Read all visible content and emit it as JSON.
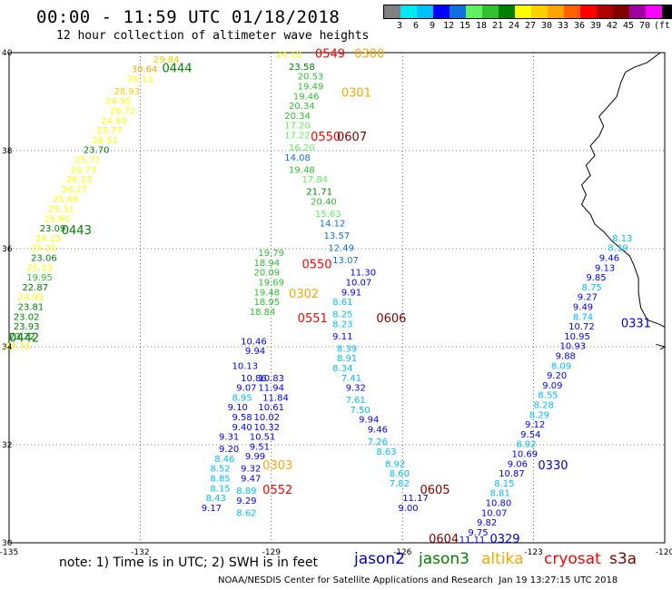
{
  "header": {
    "title": "00:00 - 11:59 UTC 01/18/2018",
    "subtitle": "12 hour collection of altimeter wave heights"
  },
  "legend": {
    "colors": [
      "#808080",
      "#00e8f0",
      "#00c0f8",
      "#0000ff",
      "#1070e0",
      "#60f060",
      "#30c030",
      "#008000",
      "#ffff00",
      "#f8d000",
      "#ffa500",
      "#ff6000",
      "#ff0000",
      "#b00000",
      "#800000",
      "#a000a0",
      "#ff00ff",
      "#000000"
    ],
    "labels": [
      "3",
      "6",
      "9",
      "12",
      "15",
      "18",
      "21",
      "24",
      "27",
      "30",
      "33",
      "36",
      "39",
      "42",
      "45",
      "70",
      "(ft)"
    ]
  },
  "map": {
    "lon_range": [
      -135,
      -120
    ],
    "lat_range": [
      30,
      40
    ],
    "lon_ticks": [
      "-135",
      "-132",
      "-129",
      "-126",
      "-123",
      "-120"
    ],
    "lat_ticks": [
      "40",
      "38",
      "36",
      "34",
      "32",
      "30"
    ],
    "grid": "dotted",
    "coastline_color": "#000000"
  },
  "chart_data": {
    "type": "scatter",
    "title": "00:00 - 11:59 UTC 01/18/2018",
    "x_axis": "longitude",
    "y_axis": "latitude",
    "passes": [
      {
        "satellite": "jason3",
        "time": "0444",
        "label_pos": [
          -131.5,
          39.6
        ],
        "points": [
          [
            -131.7,
            39.8,
            29.84
          ],
          [
            -132.2,
            39.6,
            30.64
          ],
          [
            -132.3,
            39.4,
            26.13
          ],
          [
            -132.6,
            39.15,
            28.93
          ],
          [
            -132.8,
            38.95,
            24.95
          ],
          [
            -132.7,
            38.75,
            26.72
          ],
          [
            -132.9,
            38.55,
            24.93
          ],
          [
            -133.0,
            38.35,
            25.77
          ],
          [
            -133.1,
            38.15,
            26.51
          ],
          [
            -133.3,
            37.95,
            23.7
          ],
          [
            -133.5,
            37.75,
            25.71
          ],
          [
            -133.6,
            37.55,
            26.73
          ],
          [
            -133.7,
            37.35,
            26.23
          ],
          [
            -133.8,
            37.15,
            26.27
          ],
          [
            -134.0,
            36.95,
            25.65
          ],
          [
            -134.1,
            36.75,
            25.31
          ],
          [
            -134.2,
            36.55,
            25.9
          ],
          [
            -134.3,
            36.35,
            23.09
          ],
          [
            -134.4,
            36.15,
            24.15
          ],
          [
            -134.5,
            35.95,
            25.25
          ],
          [
            -134.5,
            35.75,
            23.06
          ],
          [
            -134.6,
            35.55,
            25.33
          ],
          [
            -134.6,
            35.35,
            19.95
          ],
          [
            -134.7,
            35.15,
            22.87
          ],
          [
            -134.8,
            34.95,
            24.95
          ],
          [
            -134.8,
            34.75,
            23.81
          ],
          [
            -134.9,
            34.55,
            23.02
          ],
          [
            -134.9,
            34.35,
            23.93
          ],
          [
            -135.0,
            34.15,
            23.22
          ],
          [
            -135.1,
            33.95,
            24.15
          ]
        ]
      },
      {
        "satellite": "jason3",
        "time": "0443",
        "label_pos": [
          -133.8,
          36.3
        ],
        "points": []
      },
      {
        "satellite": "jason3",
        "time": "0442",
        "label_pos": [
          -135.0,
          34.1
        ],
        "points": []
      },
      {
        "satellite": "altika",
        "time": "0300",
        "label_pos": [
          -127.1,
          39.9
        ],
        "points": [
          [
            -128.9,
            39.9,
            24.1
          ],
          [
            -128.6,
            39.65,
            23.58
          ],
          [
            -128.4,
            39.45,
            20.53
          ],
          [
            -128.4,
            39.25,
            19.49
          ],
          [
            -128.5,
            39.05,
            19.46
          ],
          [
            -128.6,
            38.85,
            20.34
          ],
          [
            -128.7,
            38.65,
            20.34
          ],
          [
            -128.7,
            38.45,
            17.2
          ],
          [
            -128.7,
            38.25,
            17.22
          ],
          [
            -128.6,
            38.0,
            16.2
          ],
          [
            -128.7,
            37.8,
            14.08
          ],
          [
            -128.6,
            37.55,
            19.48
          ],
          [
            -128.3,
            37.35,
            17.84
          ],
          [
            -128.2,
            37.1,
            21.71
          ],
          [
            -128.1,
            36.9,
            20.4
          ],
          [
            -128.0,
            36.65,
            15.63
          ],
          [
            -127.9,
            36.45,
            14.12
          ],
          [
            -127.8,
            36.2,
            13.57
          ],
          [
            -127.7,
            35.95,
            12.49
          ],
          [
            -127.6,
            35.7,
            13.07
          ]
        ]
      },
      {
        "satellite": "altika",
        "time": "0301",
        "label_pos": [
          -127.4,
          39.1
        ],
        "points": []
      },
      {
        "satellite": "altika",
        "time": "0302",
        "label_pos": [
          -128.6,
          35.0
        ],
        "points": []
      },
      {
        "satellite": "altika",
        "time": "0303",
        "label_pos": [
          -129.2,
          31.5
        ],
        "points": []
      },
      {
        "satellite": "cryosat",
        "time": "0549",
        "label_pos": [
          -128.0,
          39.9
        ],
        "points": []
      },
      {
        "satellite": "cryosat",
        "time": "0550",
        "label_pos": [
          -128.1,
          38.2
        ],
        "points": []
      },
      {
        "satellite": "cryosat",
        "time": "0550",
        "label_pos": [
          -128.3,
          35.6
        ],
        "points": []
      },
      {
        "satellite": "cryosat",
        "time": "0551",
        "label_pos": [
          -128.4,
          34.5
        ],
        "points": []
      },
      {
        "satellite": "cryosat",
        "time": "0552",
        "label_pos": [
          -129.2,
          31.0
        ],
        "points": []
      },
      {
        "satellite": "s3a",
        "time": "0607",
        "label_pos": [
          -127.5,
          38.2
        ],
        "points": []
      },
      {
        "satellite": "s3a",
        "time": "0606",
        "label_pos": [
          -126.6,
          34.5
        ],
        "points": []
      },
      {
        "satellite": "s3a",
        "time": "0605",
        "label_pos": [
          -125.6,
          31.0
        ],
        "points": []
      },
      {
        "satellite": "s3a",
        "time": "0604",
        "label_pos": [
          -125.4,
          30.0
        ],
        "points": []
      },
      {
        "satellite": "jason2",
        "time": "0331",
        "label_pos": [
          -121.0,
          34.4
        ],
        "points": [
          [
            -121.2,
            36.15,
            8.13
          ],
          [
            -121.3,
            35.95,
            8.39
          ],
          [
            -121.5,
            35.75,
            9.46
          ],
          [
            -121.6,
            35.55,
            9.13
          ],
          [
            -121.8,
            35.35,
            9.85
          ],
          [
            -121.9,
            35.15,
            8.75
          ],
          [
            -122.0,
            34.95,
            9.27
          ],
          [
            -122.1,
            34.75,
            9.49
          ],
          [
            -122.1,
            34.55,
            8.74
          ],
          [
            -122.2,
            34.35,
            10.72
          ],
          [
            -122.3,
            34.15,
            10.95
          ],
          [
            -122.4,
            33.95,
            10.93
          ],
          [
            -122.5,
            33.75,
            9.88
          ],
          [
            -122.6,
            33.55,
            8.09
          ],
          [
            -122.7,
            33.35,
            9.2
          ],
          [
            -122.8,
            33.15,
            9.09
          ],
          [
            -122.9,
            32.95,
            8.55
          ],
          [
            -123.0,
            32.75,
            8.28
          ],
          [
            -123.1,
            32.55,
            8.29
          ],
          [
            -123.2,
            32.35,
            9.12
          ],
          [
            -123.3,
            32.15,
            9.54
          ],
          [
            -123.4,
            31.95,
            8.92
          ],
          [
            -123.5,
            31.75,
            10.69
          ],
          [
            -123.6,
            31.55,
            9.06
          ],
          [
            -123.8,
            31.35,
            10.87
          ],
          [
            -123.9,
            31.15,
            8.15
          ],
          [
            -124.0,
            30.95,
            8.81
          ],
          [
            -124.1,
            30.75,
            10.8
          ],
          [
            -124.2,
            30.55,
            10.07
          ],
          [
            -124.3,
            30.35,
            9.82
          ],
          [
            -124.5,
            30.15,
            9.75
          ],
          [
            -124.7,
            30.0,
            11.11
          ]
        ]
      },
      {
        "satellite": "jason2",
        "time": "0330",
        "label_pos": [
          -122.9,
          31.5
        ],
        "points": []
      },
      {
        "satellite": "jason2",
        "time": "0329",
        "label_pos": [
          -124.0,
          30.0
        ],
        "points": []
      },
      {
        "satellite": "jason3",
        "time": "05xx",
        "label_pos": null,
        "points": [
          [
            -129.3,
            35.85,
            19.79
          ],
          [
            -129.4,
            35.65,
            18.94
          ],
          [
            -129.4,
            35.45,
            20.09
          ],
          [
            -129.3,
            35.25,
            19.69
          ],
          [
            -129.4,
            35.05,
            19.48
          ],
          [
            -129.4,
            34.85,
            18.95
          ],
          [
            -129.5,
            34.65,
            18.84
          ]
        ]
      },
      {
        "satellite": "jason2",
        "time": "05xx",
        "label_pos": null,
        "points": [
          [
            -127.2,
            35.45,
            11.3
          ],
          [
            -127.3,
            35.25,
            10.07
          ],
          [
            -127.4,
            35.05,
            9.91
          ],
          [
            -127.6,
            34.85,
            8.61
          ],
          [
            -127.6,
            34.6,
            8.25
          ],
          [
            -127.6,
            34.4,
            8.23
          ],
          [
            -127.6,
            34.15,
            9.11
          ],
          [
            -127.5,
            33.9,
            8.39
          ],
          [
            -127.5,
            33.7,
            8.91
          ],
          [
            -127.6,
            33.5,
            8.34
          ],
          [
            -127.4,
            33.3,
            7.41
          ],
          [
            -127.3,
            33.1,
            9.32
          ],
          [
            -127.3,
            32.85,
            7.61
          ],
          [
            -127.2,
            32.65,
            7.5
          ],
          [
            -127.0,
            32.45,
            9.94
          ],
          [
            -126.8,
            32.25,
            9.46
          ],
          [
            -126.8,
            32.0,
            7.26
          ],
          [
            -126.6,
            31.8,
            8.63
          ],
          [
            -126.4,
            31.55,
            8.92
          ],
          [
            -126.3,
            31.35,
            8.6
          ],
          [
            -126.3,
            31.15,
            7.82
          ],
          [
            -126.0,
            30.85,
            11.17
          ],
          [
            -126.1,
            30.65,
            9.0
          ]
        ]
      },
      {
        "satellite": "jason2",
        "time": "03xx",
        "label_pos": null,
        "points": [
          [
            -129.7,
            34.05,
            10.46
          ],
          [
            -129.6,
            33.85,
            9.94
          ],
          [
            -129.9,
            33.55,
            10.13
          ],
          [
            -129.7,
            33.3,
            10.86
          ],
          [
            -129.8,
            33.1,
            9.07
          ],
          [
            -129.9,
            32.9,
            8.95
          ],
          [
            -130.0,
            32.7,
            9.1
          ],
          [
            -129.9,
            32.5,
            9.58
          ],
          [
            -129.9,
            32.3,
            9.4
          ],
          [
            -130.2,
            32.1,
            9.31
          ],
          [
            -130.2,
            31.85,
            9.2
          ],
          [
            -130.3,
            31.65,
            8.46
          ],
          [
            -130.4,
            31.45,
            8.52
          ],
          [
            -130.4,
            31.25,
            8.85
          ],
          [
            -130.4,
            31.05,
            8.15
          ],
          [
            -130.5,
            30.85,
            8.43
          ],
          [
            -130.6,
            30.65,
            9.17
          ],
          [
            -129.3,
            33.3,
            10.83
          ],
          [
            -129.3,
            33.1,
            11.94
          ],
          [
            -129.2,
            32.9,
            11.84
          ],
          [
            -129.3,
            32.7,
            10.61
          ],
          [
            -129.4,
            32.5,
            10.02
          ],
          [
            -129.4,
            32.3,
            10.32
          ],
          [
            -129.5,
            32.1,
            10.51
          ],
          [
            -129.5,
            31.9,
            9.51
          ],
          [
            -129.6,
            31.7,
            9.99
          ],
          [
            -129.7,
            31.45,
            9.32
          ],
          [
            -129.7,
            31.25,
            9.47
          ],
          [
            -129.8,
            31.0,
            8.89
          ],
          [
            -129.8,
            30.8,
            9.29
          ],
          [
            -129.8,
            30.55,
            8.62
          ]
        ]
      }
    ]
  },
  "footer": {
    "note": "note: 1) Time is in UTC; 2) SWH is in feet",
    "satellites": [
      {
        "name": "jason2",
        "color": "#0000c8"
      },
      {
        "name": "jason3",
        "color": "#008000"
      },
      {
        "name": "altika",
        "color": "#ffa500"
      },
      {
        "name": "cryosat",
        "color": "#ff0000"
      },
      {
        "name": "s3a",
        "color": "#800000"
      }
    ],
    "credit": "NOAA/NESDIS Center for Satellite Applications and Research  Jan 19 13:27:15 UTC 2018"
  }
}
